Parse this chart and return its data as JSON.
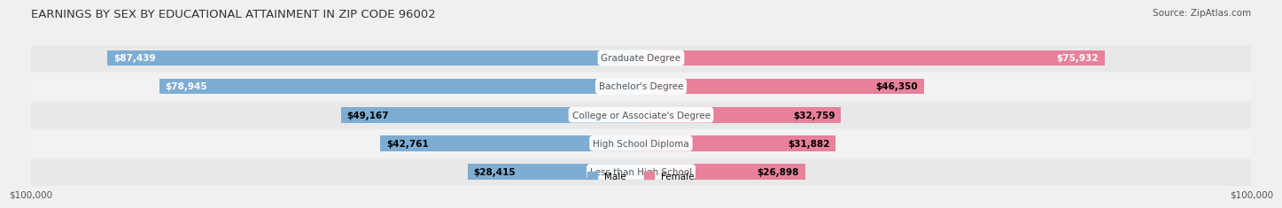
{
  "title": "EARNINGS BY SEX BY EDUCATIONAL ATTAINMENT IN ZIP CODE 96002",
  "source": "Source: ZipAtlas.com",
  "categories": [
    "Less than High School",
    "High School Diploma",
    "College or Associate's Degree",
    "Bachelor's Degree",
    "Graduate Degree"
  ],
  "male_values": [
    28415,
    42761,
    49167,
    78945,
    87439
  ],
  "female_values": [
    26898,
    31882,
    32759,
    46350,
    75932
  ],
  "max_value": 100000,
  "male_color": "#7eadd4",
  "female_color": "#e8819a",
  "label_color_male": "#5a8ab5",
  "label_color_female": "#d4607a",
  "bg_color": "#f0f0f0",
  "row_bg_light": "#f7f7f7",
  "row_bg_dark": "#e8e8e8",
  "title_fontsize": 9.5,
  "source_fontsize": 7.5,
  "bar_label_fontsize": 7.5,
  "cat_label_fontsize": 7.5,
  "axis_label_fontsize": 7.5
}
